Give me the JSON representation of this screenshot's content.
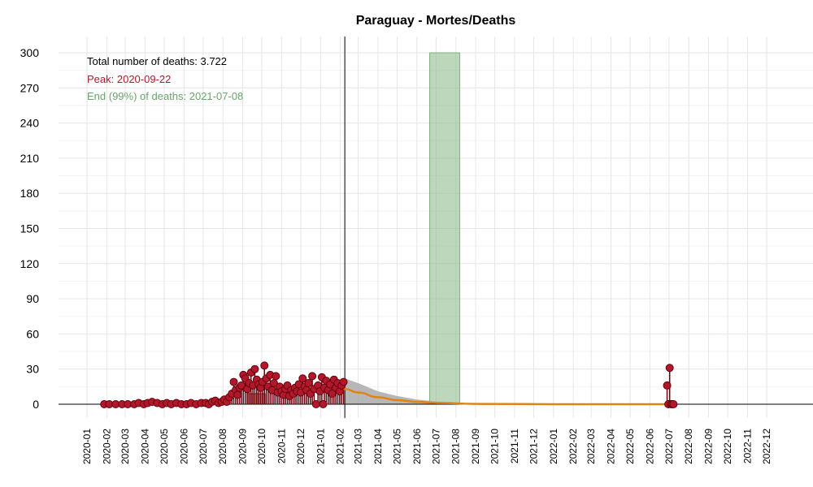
{
  "chart_data": {
    "type": "scatter",
    "title": "Paraguay - Mortes/Deaths",
    "xlabel": "",
    "ylabel": "",
    "ylim": [
      0,
      300
    ],
    "yticks": [
      0,
      30,
      60,
      90,
      120,
      150,
      180,
      210,
      240,
      270,
      300
    ],
    "x_range": [
      "2020-01-01",
      "2022-12-31"
    ],
    "x_tick_labels": [
      "2020-01",
      "2020-02",
      "2020-03",
      "2020-04",
      "2020-05",
      "2020-06",
      "2020-07",
      "2020-08",
      "2020-09",
      "2020-10",
      "2020-11",
      "2020-12",
      "2021-01",
      "2021-02",
      "2021-03",
      "2021-04",
      "2021-05",
      "2021-06",
      "2021-07",
      "2021-08",
      "2021-09",
      "2021-10",
      "2021-11",
      "2021-12",
      "2022-01",
      "2022-02",
      "2022-03",
      "2022-04",
      "2022-05",
      "2022-06",
      "2022-07",
      "2022-08",
      "2022-09",
      "2022-10",
      "2022-11",
      "2022-12"
    ],
    "grid": true,
    "annotations": {
      "total": "Total number of deaths: 3.722",
      "peak": "Peak: 2020-09-22",
      "end": "End (99%) of deaths: 2021-07-08"
    },
    "current_date_line": "2021-02-08",
    "peak_band": {
      "start": "2020-09-08",
      "end": "2020-10-06",
      "value": 9
    },
    "end_band": {
      "start": "2021-06-21",
      "end": "2021-08-07",
      "value": 300
    },
    "colors": {
      "points": "#b2182b",
      "point_stroke": "#67000d",
      "fit_line": "#e08214",
      "confidence_band": "#aaaaaa",
      "peak_band": "#d6604d",
      "end_band": "#8fbc8f",
      "peak_text": "#b2182b",
      "end_text": "#6aa56a",
      "grid": "#e6e6e6"
    },
    "fit": [
      {
        "x": "2020-01-25",
        "y": 0
      },
      {
        "x": "2020-07-15",
        "y": 0.5
      },
      {
        "x": "2020-08-01",
        "y": 2
      },
      {
        "x": "2020-08-15",
        "y": 6
      },
      {
        "x": "2020-09-01",
        "y": 13
      },
      {
        "x": "2020-09-15",
        "y": 18
      },
      {
        "x": "2020-09-22",
        "y": 19
      },
      {
        "x": "2020-10-05",
        "y": 17
      },
      {
        "x": "2020-10-20",
        "y": 14
      },
      {
        "x": "2020-11-05",
        "y": 12.5
      },
      {
        "x": "2020-11-20",
        "y": 13
      },
      {
        "x": "2020-12-05",
        "y": 14
      },
      {
        "x": "2021-01-01",
        "y": 14.5
      },
      {
        "x": "2021-02-08",
        "y": 13
      },
      {
        "x": "2021-03-01",
        "y": 10
      },
      {
        "x": "2021-04-01",
        "y": 6
      },
      {
        "x": "2021-05-01",
        "y": 3.5
      },
      {
        "x": "2021-06-01",
        "y": 2
      },
      {
        "x": "2021-07-08",
        "y": 1
      },
      {
        "x": "2021-09-01",
        "y": 0.3
      },
      {
        "x": "2022-01-01",
        "y": 0
      },
      {
        "x": "2022-07-01",
        "y": 0
      }
    ],
    "confidence_upper": [
      {
        "x": "2021-02-08",
        "y": 22
      },
      {
        "x": "2021-03-01",
        "y": 18
      },
      {
        "x": "2021-04-01",
        "y": 11
      },
      {
        "x": "2021-05-01",
        "y": 7
      },
      {
        "x": "2021-06-01",
        "y": 4
      },
      {
        "x": "2021-07-08",
        "y": 2
      },
      {
        "x": "2021-08-01",
        "y": 1
      },
      {
        "x": "2021-09-01",
        "y": 0.5
      }
    ],
    "points": [
      {
        "x": "2020-01-28",
        "y": 0
      },
      {
        "x": "2020-02-05",
        "y": 0
      },
      {
        "x": "2020-02-15",
        "y": 0
      },
      {
        "x": "2020-02-25",
        "y": 0
      },
      {
        "x": "2020-03-05",
        "y": 0
      },
      {
        "x": "2020-03-15",
        "y": 0
      },
      {
        "x": "2020-03-22",
        "y": 1
      },
      {
        "x": "2020-03-30",
        "y": 0
      },
      {
        "x": "2020-04-05",
        "y": 1
      },
      {
        "x": "2020-04-12",
        "y": 2
      },
      {
        "x": "2020-04-20",
        "y": 1
      },
      {
        "x": "2020-04-28",
        "y": 0
      },
      {
        "x": "2020-05-05",
        "y": 1
      },
      {
        "x": "2020-05-12",
        "y": 0
      },
      {
        "x": "2020-05-20",
        "y": 1
      },
      {
        "x": "2020-05-28",
        "y": 0
      },
      {
        "x": "2020-06-05",
        "y": 0
      },
      {
        "x": "2020-06-12",
        "y": 1
      },
      {
        "x": "2020-06-20",
        "y": 0
      },
      {
        "x": "2020-06-28",
        "y": 1
      },
      {
        "x": "2020-07-05",
        "y": 1
      },
      {
        "x": "2020-07-10",
        "y": 0
      },
      {
        "x": "2020-07-15",
        "y": 2
      },
      {
        "x": "2020-07-20",
        "y": 3
      },
      {
        "x": "2020-07-25",
        "y": 1
      },
      {
        "x": "2020-07-30",
        "y": 2
      },
      {
        "x": "2020-08-03",
        "y": 4
      },
      {
        "x": "2020-08-07",
        "y": 2
      },
      {
        "x": "2020-08-11",
        "y": 6
      },
      {
        "x": "2020-08-15",
        "y": 9
      },
      {
        "x": "2020-08-18",
        "y": 19
      },
      {
        "x": "2020-08-21",
        "y": 12
      },
      {
        "x": "2020-08-24",
        "y": 8
      },
      {
        "x": "2020-08-27",
        "y": 14
      },
      {
        "x": "2020-08-30",
        "y": 16
      },
      {
        "x": "2020-09-02",
        "y": 25
      },
      {
        "x": "2020-09-05",
        "y": 22
      },
      {
        "x": "2020-09-08",
        "y": 13
      },
      {
        "x": "2020-09-11",
        "y": 18
      },
      {
        "x": "2020-09-14",
        "y": 27
      },
      {
        "x": "2020-09-17",
        "y": 16
      },
      {
        "x": "2020-09-20",
        "y": 30
      },
      {
        "x": "2020-09-23",
        "y": 21
      },
      {
        "x": "2020-09-26",
        "y": 17
      },
      {
        "x": "2020-09-29",
        "y": 14
      },
      {
        "x": "2020-10-02",
        "y": 19
      },
      {
        "x": "2020-10-05",
        "y": 33
      },
      {
        "x": "2020-10-08",
        "y": 22
      },
      {
        "x": "2020-10-11",
        "y": 15
      },
      {
        "x": "2020-10-14",
        "y": 25
      },
      {
        "x": "2020-10-17",
        "y": 12
      },
      {
        "x": "2020-10-20",
        "y": 18
      },
      {
        "x": "2020-10-23",
        "y": 24
      },
      {
        "x": "2020-10-26",
        "y": 10
      },
      {
        "x": "2020-10-29",
        "y": 15
      },
      {
        "x": "2020-11-01",
        "y": 11
      },
      {
        "x": "2020-11-04",
        "y": 8
      },
      {
        "x": "2020-11-07",
        "y": 13
      },
      {
        "x": "2020-11-10",
        "y": 16
      },
      {
        "x": "2020-11-13",
        "y": 7
      },
      {
        "x": "2020-11-16",
        "y": 12
      },
      {
        "x": "2020-11-19",
        "y": 9
      },
      {
        "x": "2020-11-22",
        "y": 14
      },
      {
        "x": "2020-11-25",
        "y": 11
      },
      {
        "x": "2020-11-28",
        "y": 17
      },
      {
        "x": "2020-12-01",
        "y": 10
      },
      {
        "x": "2020-12-04",
        "y": 22
      },
      {
        "x": "2020-12-07",
        "y": 15
      },
      {
        "x": "2020-12-10",
        "y": 12
      },
      {
        "x": "2020-12-13",
        "y": 18
      },
      {
        "x": "2020-12-16",
        "y": 9
      },
      {
        "x": "2020-12-19",
        "y": 24
      },
      {
        "x": "2020-12-22",
        "y": 13
      },
      {
        "x": "2020-12-25",
        "y": 0
      },
      {
        "x": "2020-12-28",
        "y": 16
      },
      {
        "x": "2020-12-31",
        "y": 11
      },
      {
        "x": "2021-01-03",
        "y": 23
      },
      {
        "x": "2021-01-05",
        "y": 0
      },
      {
        "x": "2021-01-07",
        "y": 14
      },
      {
        "x": "2021-01-10",
        "y": 20
      },
      {
        "x": "2021-01-13",
        "y": 12
      },
      {
        "x": "2021-01-16",
        "y": 17
      },
      {
        "x": "2021-01-19",
        "y": 9
      },
      {
        "x": "2021-01-22",
        "y": 21
      },
      {
        "x": "2021-01-25",
        "y": 14
      },
      {
        "x": "2021-01-28",
        "y": 18
      },
      {
        "x": "2021-01-31",
        "y": 11
      },
      {
        "x": "2021-02-03",
        "y": 16
      },
      {
        "x": "2021-02-06",
        "y": 19
      },
      {
        "x": "2022-06-28",
        "y": 16
      },
      {
        "x": "2022-06-30",
        "y": 0
      },
      {
        "x": "2022-07-02",
        "y": 31
      },
      {
        "x": "2022-07-04",
        "y": 0
      },
      {
        "x": "2022-07-06",
        "y": 0
      },
      {
        "x": "2022-07-08",
        "y": 0
      }
    ]
  }
}
